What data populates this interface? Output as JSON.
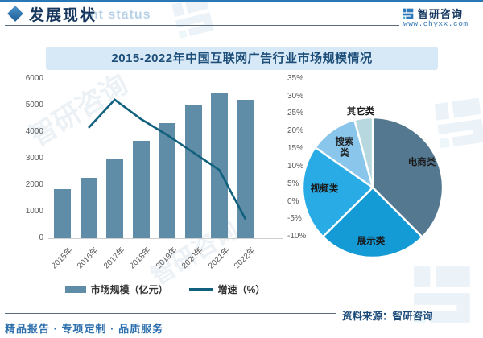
{
  "page": {
    "top_strip_color": "#2878b8"
  },
  "header": {
    "section_title": "发展现状",
    "ghost_watermark": "ent status",
    "brand_name": "智研咨询",
    "brand_url": "www.chyxx.com"
  },
  "banner_title": "2015-2022年中国互联网广告行业市场规模情况",
  "chart_data": [
    {
      "type": "bar+line",
      "title": "2015-2022年中国互联网广告行业市场规模情况",
      "categories": [
        "2015年",
        "2016年",
        "2017年",
        "2018年",
        "2019年",
        "2020年",
        "2021年",
        "2022年"
      ],
      "series": [
        {
          "name": "市场规模（亿元）",
          "type": "bar",
          "axis": "left",
          "color": "#5f8ca6",
          "values": [
            1850,
            2270,
            2960,
            3660,
            4340,
            4980,
            5460,
            5200
          ]
        },
        {
          "name": "增速（%）",
          "type": "line",
          "axis": "right",
          "color": "#10607e",
          "values": [
            null,
            21,
            29,
            23.5,
            19,
            14,
            9,
            -5
          ]
        }
      ],
      "left_axis": {
        "min": 0,
        "max": 6000,
        "step": 1000,
        "ticks": [
          "6000",
          "5000",
          "4000",
          "3000",
          "2000",
          "1000",
          "0"
        ]
      },
      "right_axis": {
        "min": -10,
        "max": 35,
        "step": 5,
        "ticks": [
          "35%",
          "30%",
          "25%",
          "20%",
          "15%",
          "10%",
          "5%",
          "0%",
          "-5%",
          "-10%"
        ]
      },
      "grid": false,
      "legend_position": "bottom"
    },
    {
      "type": "pie",
      "start_angle_deg": 0,
      "direction": "clockwise",
      "slices": [
        {
          "label": "电商类",
          "value": 37.5,
          "color": "#54788f"
        },
        {
          "label": "展示类",
          "value": 25.1,
          "color": "#149bd5"
        },
        {
          "label": "视频类",
          "value": 22.1,
          "color": "#29ace6"
        },
        {
          "label": "搜索类",
          "value": 11.1,
          "color": "#8ac6ec"
        },
        {
          "label": "其它类",
          "value": 4.2,
          "color": "#b6d8de"
        }
      ]
    }
  ],
  "legend": [
    {
      "label": "市场规模（亿元）",
      "swatch": "bar",
      "color": "#5f8ca6"
    },
    {
      "label": "增速（%）",
      "swatch": "line",
      "color": "#10607e"
    }
  ],
  "footer": {
    "source": "资料来源：智研咨询",
    "tagline": "精品报告 · 专项定制 · 品质服务"
  },
  "decor": {
    "watermark_text": "智研咨询"
  }
}
